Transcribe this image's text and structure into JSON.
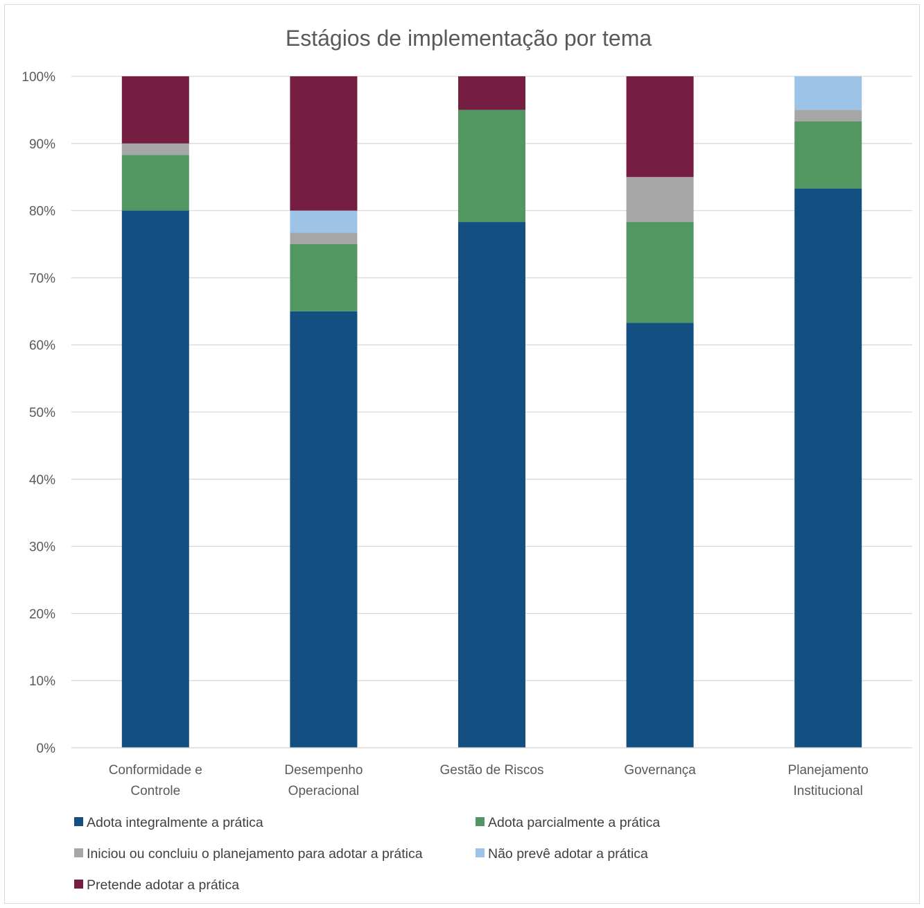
{
  "chart_data": {
    "type": "bar",
    "stacked": "percent",
    "title": "Estágios de implementação por tema",
    "xlabel": "",
    "ylabel": "",
    "ylim": [
      0,
      100
    ],
    "ytick_labels": [
      "0%",
      "10%",
      "20%",
      "30%",
      "40%",
      "50%",
      "60%",
      "70%",
      "80%",
      "90%",
      "100%"
    ],
    "grid": true,
    "legend_position": "bottom",
    "categories": [
      [
        "Conformidade e",
        "Controle"
      ],
      [
        "Desempenho",
        "Operacional"
      ],
      [
        "Gestão de Riscos"
      ],
      [
        "Governança"
      ],
      [
        "Planejamento",
        "Institucional"
      ]
    ],
    "series": [
      {
        "name": "Adota integralmente a prática",
        "color": "#134f80",
        "values": [
          80,
          65,
          78.3,
          63.3,
          83.3
        ]
      },
      {
        "name": "Adota parcialmente a prática",
        "color": "#529662",
        "values": [
          8.3,
          10,
          16.7,
          15,
          10
        ]
      },
      {
        "name": "Iniciou ou concluiu o planejamento para adotar a prática",
        "color": "#a6a6a6",
        "values": [
          1.7,
          1.7,
          0,
          6.7,
          1.7
        ]
      },
      {
        "name": "Não prevê adotar a prática",
        "color": "#9dc3e6",
        "values": [
          0,
          3.3,
          0,
          0,
          5
        ]
      },
      {
        "name": "Pretende adotar a prática",
        "color": "#751e41",
        "values": [
          10,
          20,
          5,
          15,
          0
        ]
      }
    ]
  }
}
